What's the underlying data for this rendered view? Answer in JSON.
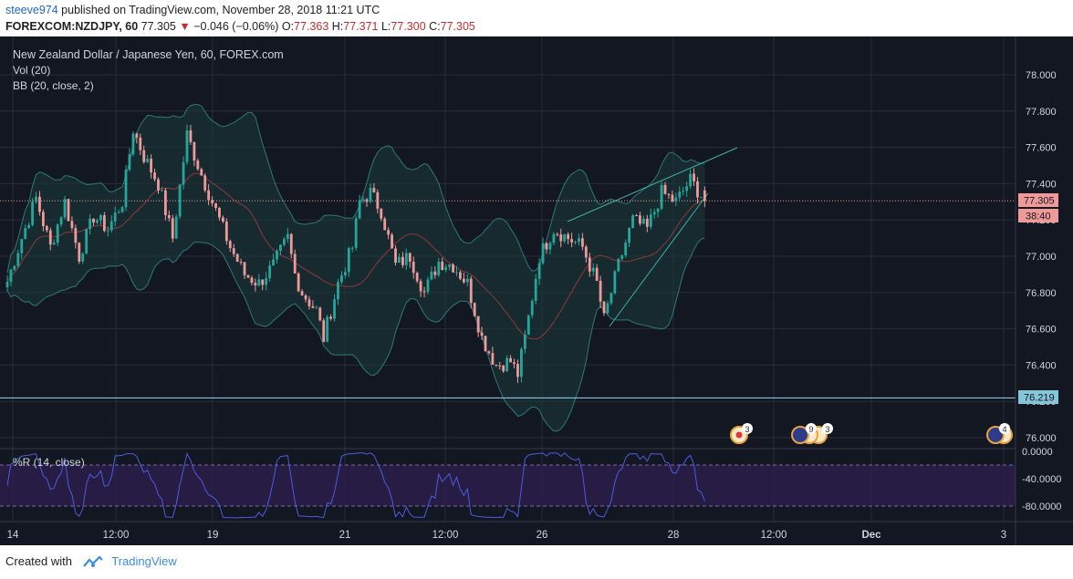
{
  "header": {
    "user": "steeve974",
    "published_text": "published on TradingView.com, November 28, 2018 11:21 UTC",
    "symbol": "FOREXCOM:NZDJPY, 60",
    "last": "77.305",
    "change_arrow": "▼",
    "change": "−0.046 (−0.06%)",
    "o_label": "O:",
    "o": "77.363",
    "h_label": "H:",
    "h": "77.371",
    "l_label": "L:",
    "l": "77.300",
    "c_label": "C:",
    "c": "77.305"
  },
  "legend": {
    "title": "New Zealand Dollar / Japanese Yen, 60, FOREX.com",
    "vol": "Vol (20)",
    "bb": "BB (20, close, 2)",
    "wr": "%R (14, close)"
  },
  "price_badges": {
    "last": "77.305",
    "countdown": "38:40",
    "hline": "76.219"
  },
  "event_badges": [
    "3",
    "9",
    "3",
    "4"
  ],
  "footer": {
    "created_with": "Created with",
    "brand": "TradingView"
  },
  "colors": {
    "background": "#131722",
    "up": "#26a69a",
    "down": "#ef9a9a",
    "bb_band": "#2a7a78",
    "bb_basis": "#8e3a3a",
    "wr_line": "#4d5be0",
    "wr_fill": "#2a1d4a",
    "grid": "#2a2e39",
    "axis_text": "#d1d4dc",
    "hline": "#84c6d8"
  },
  "chart_data": {
    "type": "candlestick",
    "symbol": "FOREXCOM:NZDJPY",
    "interval": "60",
    "x_tick_labels": [
      "14",
      "12:00",
      "19",
      "21",
      "12:00",
      "26",
      "28",
      "12:00",
      "Dec",
      "3"
    ],
    "y_tick_labels": [
      "78.000",
      "77.800",
      "77.600",
      "77.400",
      "77.200",
      "77.000",
      "76.800",
      "76.600",
      "76.400",
      "76.200",
      "76.000"
    ],
    "ylim": [
      75.98,
      78.16
    ],
    "close_path": [
      [
        0,
        76.86
      ],
      [
        4,
        77.1
      ],
      [
        8,
        77.32
      ],
      [
        12,
        77.05
      ],
      [
        16,
        77.3
      ],
      [
        20,
        77.0
      ],
      [
        24,
        77.22
      ],
      [
        28,
        77.15
      ],
      [
        32,
        77.3
      ],
      [
        35,
        77.7
      ],
      [
        38,
        77.55
      ],
      [
        42,
        77.4
      ],
      [
        46,
        77.1
      ],
      [
        50,
        77.67
      ],
      [
        54,
        77.45
      ],
      [
        58,
        77.25
      ],
      [
        62,
        77.05
      ],
      [
        66,
        76.9
      ],
      [
        70,
        76.85
      ],
      [
        74,
        76.95
      ],
      [
        78,
        77.1
      ],
      [
        80,
        76.9
      ],
      [
        82,
        76.8
      ],
      [
        86,
        76.7
      ],
      [
        88,
        76.55
      ],
      [
        92,
        76.85
      ],
      [
        96,
        77.05
      ],
      [
        98,
        77.3
      ],
      [
        101,
        77.35
      ],
      [
        104,
        77.25
      ],
      [
        108,
        76.95
      ],
      [
        112,
        77.0
      ],
      [
        116,
        76.8
      ],
      [
        120,
        76.97
      ],
      [
        124,
        76.95
      ],
      [
        128,
        76.85
      ],
      [
        132,
        76.55
      ],
      [
        136,
        76.4
      ],
      [
        140,
        76.42
      ],
      [
        142,
        76.35
      ],
      [
        144,
        76.55
      ],
      [
        148,
        77.0
      ],
      [
        152,
        77.15
      ],
      [
        156,
        77.1
      ],
      [
        160,
        77.05
      ],
      [
        164,
        76.85
      ],
      [
        166,
        76.65
      ],
      [
        170,
        76.95
      ],
      [
        174,
        77.2
      ],
      [
        178,
        77.15
      ],
      [
        182,
        77.35
      ],
      [
        186,
        77.3
      ],
      [
        190,
        77.42
      ],
      [
        194,
        77.31
      ]
    ],
    "bollinger": {
      "length": 20,
      "source": "close",
      "mult": 2
    },
    "volume": {
      "length": 20
    },
    "williams_r": {
      "length": 14,
      "source": "close",
      "levels": [
        -20,
        -80
      ],
      "y_tick_labels": [
        "0.0000",
        "-40.0000",
        "-80.0000"
      ],
      "ylim": [
        -100,
        0
      ]
    },
    "horizontal_line": 76.219,
    "last_price": 77.305
  }
}
